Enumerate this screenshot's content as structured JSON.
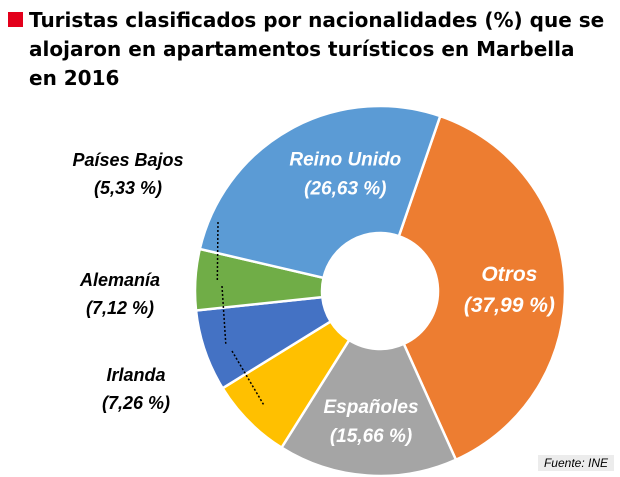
{
  "title": "Turistas clasificados por nacionalidades (%) que se alojaron en apartamentos turísticos en Marbella en 2016",
  "source": "Fuente: INE",
  "chart_data": {
    "type": "pie",
    "donut": true,
    "title": "Turistas clasificados por nacionalidades (%) que se alojaron en apartamentos turísticos en Marbella en 2016",
    "slices": [
      {
        "name": "Otros",
        "value": 37.99,
        "label": "(37,99 %)",
        "color": "#ed7d31",
        "label_color": "#ffffff"
      },
      {
        "name": "Españoles",
        "value": 15.66,
        "label": "(15,66 %)",
        "color": "#a5a5a5",
        "label_color": "#ffffff"
      },
      {
        "name": "Irlanda",
        "value": 7.26,
        "label": "(7,26 %)",
        "color": "#ffc000",
        "label_color": "#000000"
      },
      {
        "name": "Alemanía",
        "value": 7.12,
        "label": "(7,12 %)",
        "color": "#4472c4",
        "label_color": "#000000"
      },
      {
        "name": "Países Bajos",
        "value": 5.33,
        "label": "(5,33 %)",
        "color": "#70ad47",
        "label_color": "#000000"
      },
      {
        "name": "Reino Unido",
        "value": 26.63,
        "label": "(26,63 %)",
        "color": "#5b9bd5",
        "label_color": "#ffffff"
      }
    ]
  }
}
